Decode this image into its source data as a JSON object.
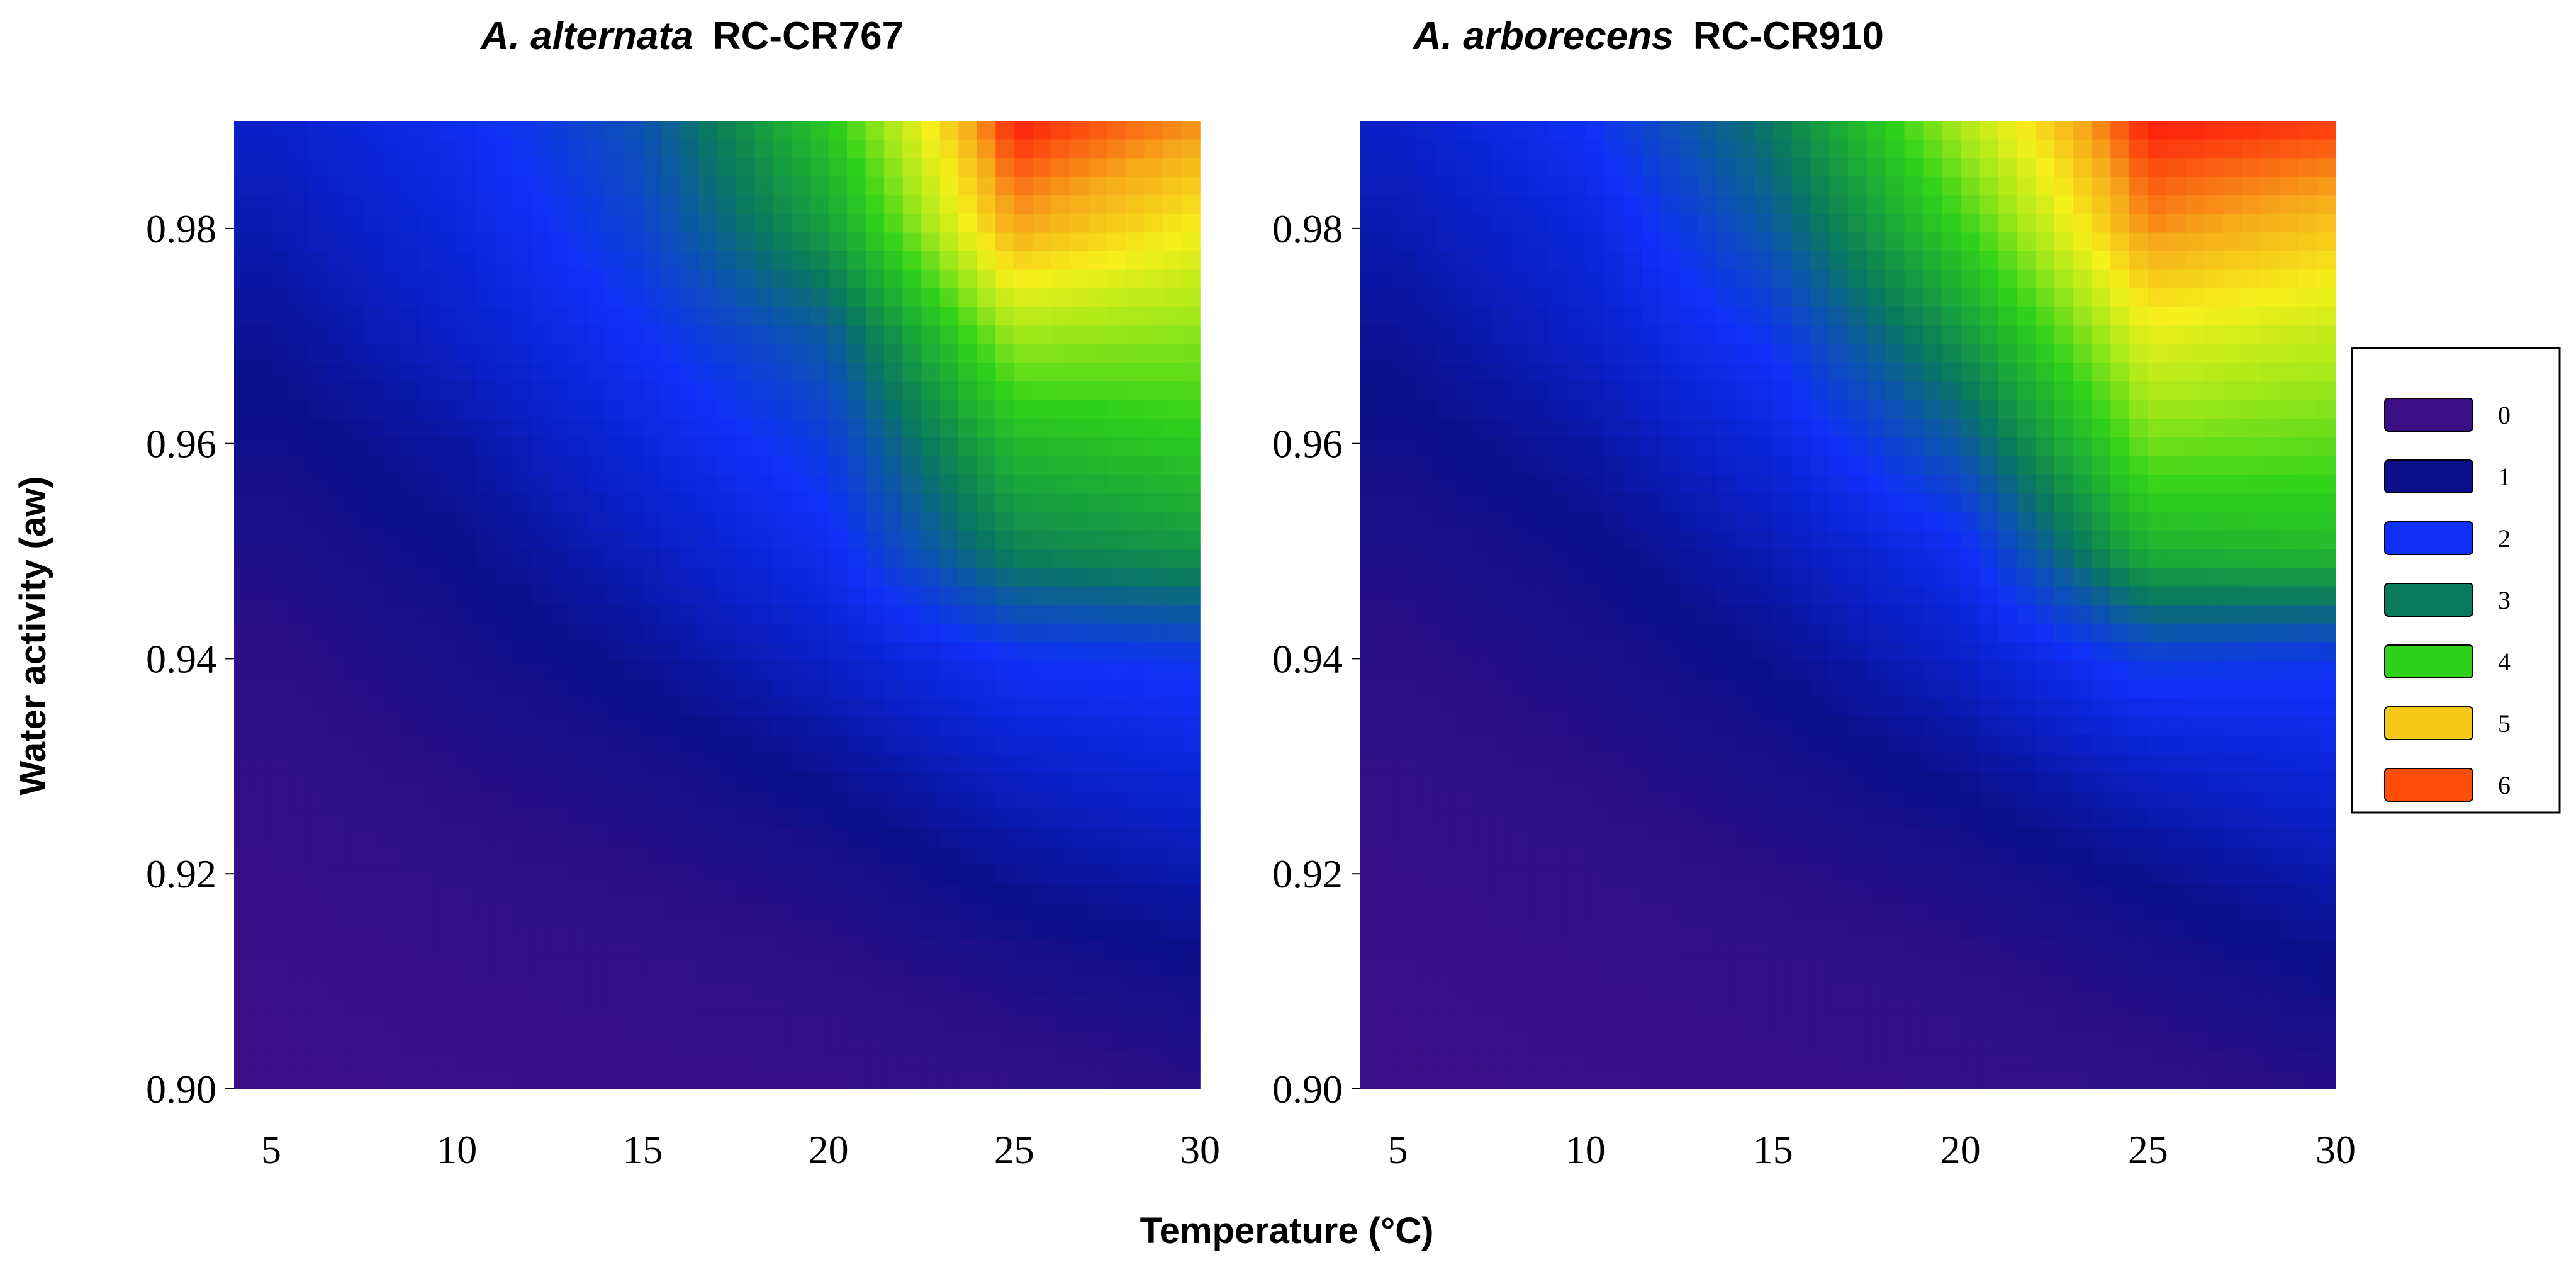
{
  "chart_data": [
    {
      "type": "heatmap",
      "title_species": "A. alternata",
      "title_strain": "RC-CR767",
      "xlabel": "Temperature (°C)",
      "ylabel": "Water activity (aw)",
      "x": [
        5,
        10,
        15,
        20,
        25,
        30
      ],
      "y": [
        0.9,
        0.92,
        0.94,
        0.96,
        0.98
      ],
      "xlim": [
        4,
        30
      ],
      "ylim": [
        0.9,
        0.99
      ],
      "xticks": [
        "5",
        "10",
        "15",
        "20",
        "25",
        "30"
      ],
      "yticks": [
        "0.90",
        "0.92",
        "0.94",
        "0.96",
        "0.98"
      ],
      "z_columns_by_temperature": [
        [
          0.05,
          0.1,
          0.2,
          0.35,
          0.5,
          0.7,
          0.9,
          1.1,
          1.3,
          1.5
        ],
        [
          0.1,
          0.2,
          0.4,
          0.6,
          0.8,
          1.0,
          1.2,
          1.5,
          1.7,
          1.9
        ],
        [
          0.15,
          0.3,
          0.55,
          0.8,
          1.1,
          1.4,
          1.7,
          2.0,
          2.3,
          2.5
        ],
        [
          0.2,
          0.45,
          0.75,
          1.1,
          1.5,
          1.9,
          2.2,
          2.6,
          3.4,
          3.9
        ],
        [
          0.35,
          0.7,
          1.1,
          1.5,
          2.0,
          3.1,
          3.7,
          4.5,
          5.5,
          6.0
        ],
        [
          0.55,
          0.9,
          1.3,
          1.7,
          2.1,
          3.3,
          3.9,
          4.4,
          5.0,
          5.6
        ]
      ]
    },
    {
      "type": "heatmap",
      "title_species": "A. arborecens",
      "title_strain": "RC-CR910",
      "xlabel": "Temperature (°C)",
      "ylabel": "Water activity (aw)",
      "x": [
        5,
        10,
        15,
        20,
        25,
        30
      ],
      "y": [
        0.9,
        0.92,
        0.94,
        0.96,
        0.98
      ],
      "xlim": [
        4,
        30
      ],
      "ylim": [
        0.9,
        0.99
      ],
      "xticks": [
        "5",
        "10",
        "15",
        "20",
        "25",
        "30"
      ],
      "yticks": [
        "0.90",
        "0.92",
        "0.94",
        "0.96",
        "0.98"
      ],
      "z_columns_by_temperature": [
        [
          0.05,
          0.1,
          0.2,
          0.35,
          0.5,
          0.7,
          0.9,
          1.1,
          1.3,
          1.5
        ],
        [
          0.1,
          0.2,
          0.35,
          0.55,
          0.75,
          0.95,
          1.2,
          1.5,
          1.7,
          2.0
        ],
        [
          0.15,
          0.3,
          0.55,
          0.8,
          1.05,
          1.35,
          1.7,
          2.1,
          2.6,
          3.0
        ],
        [
          0.25,
          0.45,
          0.75,
          1.1,
          1.5,
          1.9,
          2.6,
          3.3,
          4.0,
          4.6
        ],
        [
          0.4,
          0.7,
          1.05,
          1.5,
          2.2,
          3.6,
          4.3,
          4.9,
          5.6,
          6.0
        ],
        [
          0.6,
          0.95,
          1.3,
          1.7,
          2.1,
          3.7,
          4.2,
          4.7,
          5.3,
          5.9
        ]
      ]
    }
  ],
  "legend": {
    "entries": [
      {
        "label": "0",
        "color": "#3a0f86"
      },
      {
        "label": "1",
        "color": "#0b0f8a"
      },
      {
        "label": "2",
        "color": "#1030f8"
      },
      {
        "label": "3",
        "color": "#0a7a5c"
      },
      {
        "label": "4",
        "color": "#2fd21a"
      },
      {
        "label": "5",
        "color": "#f6c81a"
      },
      {
        "label": "6",
        "color": "#ff4e0a"
      }
    ]
  },
  "colormap": [
    {
      "v": 0.0,
      "color": "#3a0f86"
    },
    {
      "v": 0.5,
      "color": "#2c0f88"
    },
    {
      "v": 1.0,
      "color": "#0b0f8a"
    },
    {
      "v": 1.5,
      "color": "#0a20c8"
    },
    {
      "v": 2.0,
      "color": "#1030f8"
    },
    {
      "v": 2.5,
      "color": "#0c52b2"
    },
    {
      "v": 3.0,
      "color": "#0a7a5c"
    },
    {
      "v": 3.5,
      "color": "#1ba838"
    },
    {
      "v": 4.0,
      "color": "#2fd21a"
    },
    {
      "v": 4.5,
      "color": "#a0e81a"
    },
    {
      "v": 5.0,
      "color": "#f6f01a"
    },
    {
      "v": 5.5,
      "color": "#f6a81a"
    },
    {
      "v": 6.0,
      "color": "#ff1a0a"
    }
  ]
}
